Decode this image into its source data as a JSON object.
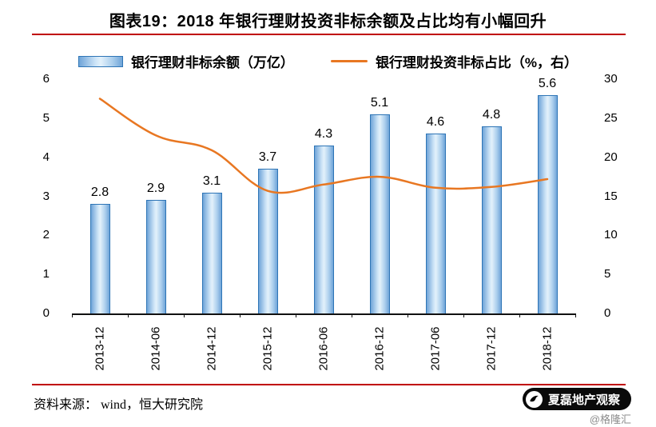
{
  "chart_data": {
    "type": "bar",
    "subtype": "bar+line combo with dual y-axes",
    "title": "图表19：2018 年银行理财投资非标余额及占比均有小幅回升",
    "categories": [
      "2013-12",
      "2014-06",
      "2014-12",
      "2015-12",
      "2016-06",
      "2016-12",
      "2017-06",
      "2017-12",
      "2018-12"
    ],
    "series": [
      {
        "name": "银行理财非标余额（万亿）",
        "type": "bar",
        "axis": "left",
        "values": [
          2.8,
          2.9,
          3.1,
          3.7,
          4.3,
          5.1,
          4.6,
          4.8,
          5.6
        ],
        "fill": "#BDD7EE",
        "border": "#2E75B6"
      },
      {
        "name": "银行理财投资非标占比（%，右）",
        "type": "line",
        "axis": "right",
        "values": [
          27.5,
          22.8,
          20.9,
          15.7,
          16.5,
          17.5,
          16.1,
          16.2,
          17.2
        ],
        "color": "#E87722"
      }
    ],
    "left_axis": {
      "min": 0,
      "max": 6,
      "ticks": [
        0,
        1,
        2,
        3,
        4,
        5,
        6
      ]
    },
    "right_axis": {
      "min": 0,
      "max": 30,
      "ticks": [
        0,
        5,
        10,
        15,
        20,
        25,
        30
      ]
    },
    "grid": false,
    "legend_position": "top",
    "data_labels": true
  },
  "footer": {
    "source": "资料来源：  wind，恒大研究院",
    "brand": "夏磊地产观察",
    "watermark": "@格隆汇"
  },
  "colors": {
    "rule": "#C00000",
    "line": "#E87722",
    "bar_border": "#2E75B6",
    "axis": "#111111",
    "text": "#000000"
  }
}
